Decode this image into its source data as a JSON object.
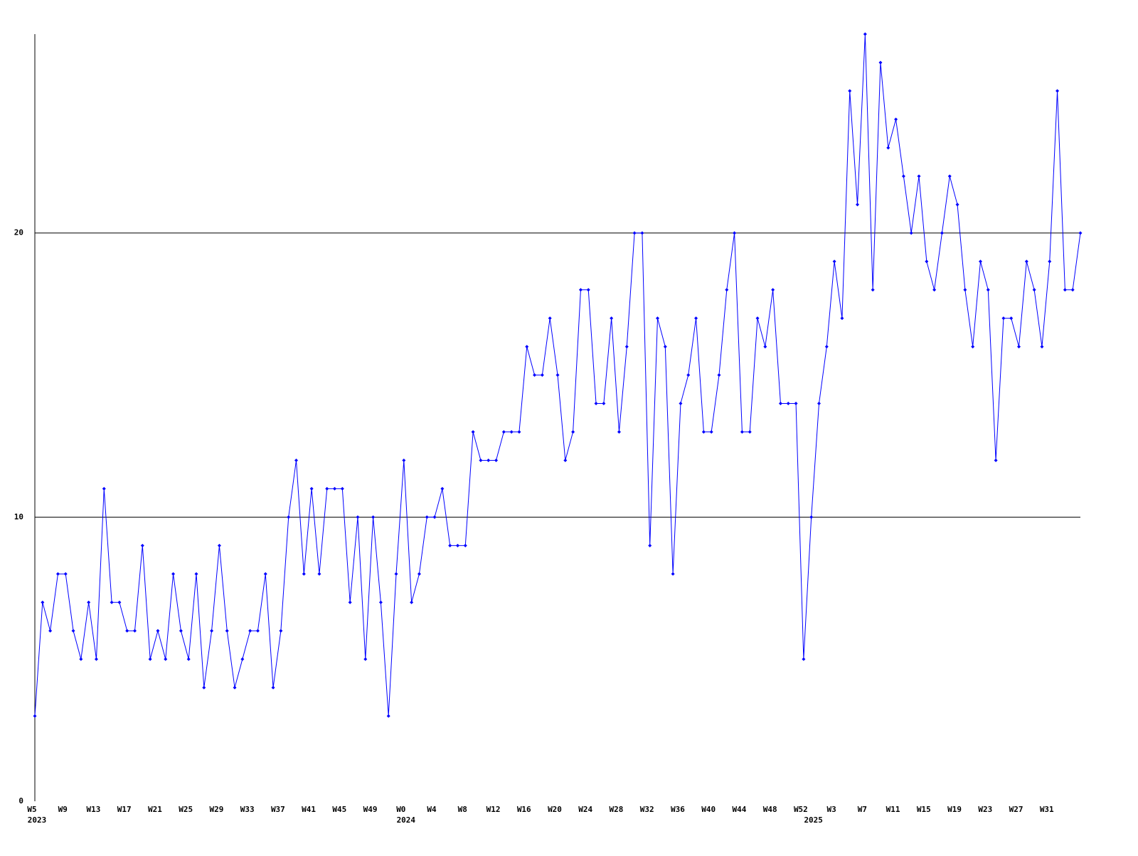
{
  "chart_data": {
    "type": "line",
    "categories": [
      "W5",
      null,
      null,
      null,
      "W9",
      null,
      null,
      null,
      "W13",
      null,
      null,
      null,
      "W17",
      null,
      null,
      null,
      "W21",
      null,
      null,
      null,
      "W25",
      null,
      null,
      null,
      "W29",
      null,
      null,
      null,
      "W33",
      null,
      null,
      null,
      "W37",
      null,
      null,
      null,
      "W41",
      null,
      null,
      null,
      "W45",
      null,
      null,
      null,
      "W49",
      null,
      null,
      null,
      "W0",
      null,
      null,
      null,
      "W4",
      null,
      null,
      null,
      "W8",
      null,
      null,
      null,
      "W12",
      null,
      null,
      null,
      "W16",
      null,
      null,
      null,
      "W20",
      null,
      null,
      null,
      "W24",
      null,
      null,
      null,
      "W28",
      null,
      null,
      null,
      "W32",
      null,
      null,
      null,
      "W36",
      null,
      null,
      null,
      "W40",
      null,
      null,
      null,
      "W44",
      null,
      null,
      null,
      "W48",
      null,
      null,
      null,
      "W52",
      null,
      null,
      null,
      "W3",
      null,
      null,
      null,
      "W7",
      null,
      null,
      null,
      "W11",
      null,
      null,
      null,
      "W15",
      null,
      null,
      null,
      "W19",
      null,
      null,
      null,
      "W23",
      null,
      null,
      null,
      "W27",
      null,
      null,
      null,
      "W31",
      null,
      null,
      null,
      null
    ],
    "years": [
      {
        "at": 0,
        "label": "2023"
      },
      {
        "at": 48,
        "label": "2024"
      },
      {
        "at": 101,
        "label": "2025"
      }
    ],
    "series": [
      {
        "color": "#0000ff",
        "values": [
          3,
          7,
          6,
          8,
          8,
          6,
          5,
          7,
          5,
          11,
          7,
          7,
          6,
          6,
          9,
          5,
          6,
          5,
          8,
          6,
          5,
          8,
          4,
          6,
          9,
          6,
          4,
          5,
          6,
          6,
          8,
          4,
          6,
          10,
          12,
          8,
          11,
          8,
          11,
          11,
          11,
          7,
          10,
          5,
          10,
          7,
          3,
          8,
          12,
          7,
          8,
          10,
          10,
          11,
          9,
          9,
          9,
          13,
          12,
          12,
          12,
          13,
          13,
          13,
          16,
          15,
          15,
          17,
          15,
          12,
          13,
          18,
          18,
          14,
          14,
          17,
          13,
          16,
          20,
          20,
          9,
          17,
          16,
          8,
          14,
          15,
          17,
          13,
          13,
          15,
          18,
          20,
          13,
          13,
          17,
          16,
          18,
          14,
          14,
          14,
          5,
          10,
          14,
          16,
          19,
          17,
          25,
          21,
          27,
          18,
          26,
          23,
          24,
          22,
          20,
          22,
          19,
          18,
          20,
          22,
          21,
          18,
          16,
          19,
          18,
          12,
          17,
          17,
          16,
          19,
          18,
          16,
          19,
          25,
          18,
          18,
          20
        ]
      }
    ],
    "ylim": [
      0,
      27
    ],
    "yticks": [
      0,
      10,
      20
    ],
    "grid": true
  }
}
